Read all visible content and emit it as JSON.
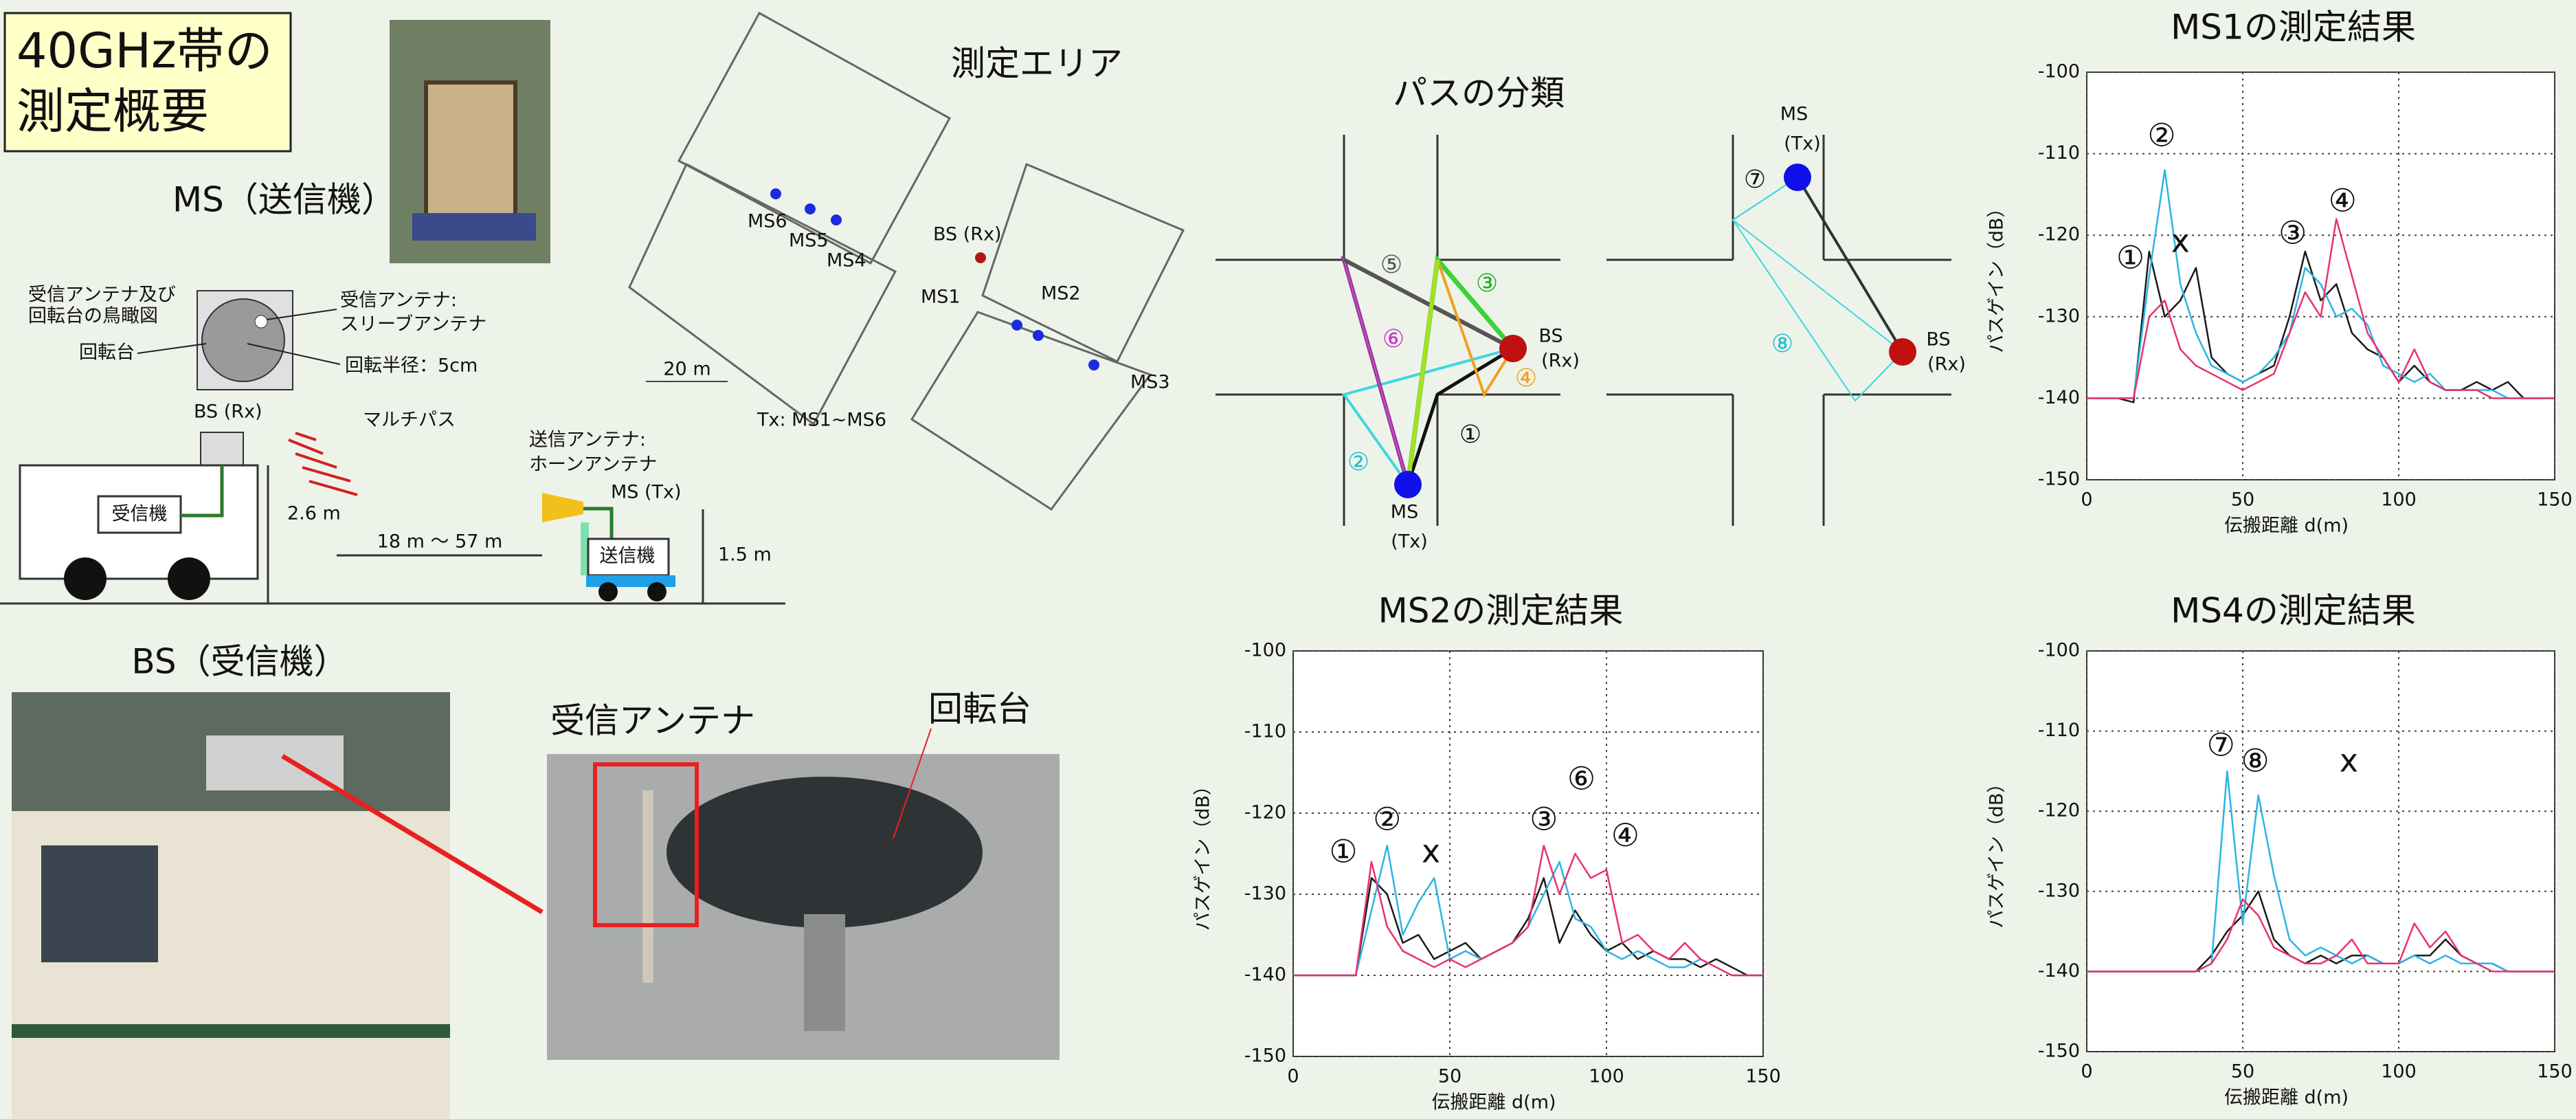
{
  "header": {
    "title_lines": [
      "40GHz帯の",
      "測定概要"
    ]
  },
  "setup": {
    "ms_label": "MS（送信機）",
    "birdseye_lines": [
      "受信アンテナ及び",
      "回転台の鳥瞰図"
    ],
    "rx_antenna_lines": [
      "受信アンテナ:",
      "スリーブアンテナ"
    ],
    "turntable": "回転台",
    "radius": "回転半径：5cm",
    "bs_rx": "BS (Rx)",
    "receiver": "受信機",
    "multipath": "マルチパス",
    "height_bs": "2.6 m",
    "distance": "18 m ～ 57 m",
    "tx_antenna_lines": [
      "送信アンテナ:",
      "ホーンアンテナ"
    ],
    "ms_tx": "MS (Tx)",
    "transmitter": "送信機",
    "height_ms": "1.5 m",
    "bs_label": "BS（受信機）",
    "rx_antenna_photo": "受信アンテナ",
    "turntable_photo": "回転台"
  },
  "map": {
    "title": "測定エリア",
    "points": [
      "MS1",
      "MS2",
      "MS3",
      "MS4",
      "MS5",
      "MS6"
    ],
    "bs": "BS (Rx)",
    "scale": "20 m",
    "tx_note": "Tx: MS1~MS6"
  },
  "paths": {
    "title": "パスの分類",
    "labels": [
      "①",
      "②",
      "③",
      "④",
      "⑤",
      "⑥",
      "⑦",
      "⑧"
    ],
    "bs": "BS",
    "rx": "(Rx)",
    "ms": "MS",
    "tx": "(Tx)"
  },
  "chart_data": [
    {
      "type": "line",
      "title": "MS1の測定結果",
      "x_label": "伝搬距離 d(m)",
      "y_label": "パスゲイン（dB）",
      "xlim": [
        0,
        150
      ],
      "ylim": [
        -150,
        -100
      ],
      "xticks": [
        0,
        50,
        100,
        150
      ],
      "yticks": [
        -150,
        -140,
        -130,
        -120,
        -110,
        -100
      ],
      "grid": true,
      "x": [
        0,
        5,
        10,
        15,
        20,
        25,
        30,
        35,
        40,
        45,
        50,
        55,
        60,
        65,
        70,
        75,
        80,
        85,
        90,
        95,
        100,
        105,
        110,
        115,
        120,
        125,
        130,
        135,
        140,
        145,
        150
      ],
      "series": [
        {
          "color": "#1a1a1a",
          "values": [
            -140,
            -140,
            -140,
            -140.5,
            -122,
            -130,
            -128,
            -124,
            -135,
            -137,
            -138,
            -137,
            -136,
            -130,
            -122,
            -128,
            -126,
            -132,
            -134,
            -135,
            -138,
            -136,
            -138,
            -139,
            -139,
            -138,
            -139,
            -138,
            -140,
            -140,
            -140
          ]
        },
        {
          "color": "#2bb5e6",
          "values": [
            -140,
            -140,
            -140,
            -140,
            -125,
            -112,
            -126,
            -132,
            -136,
            -137,
            -138,
            -137,
            -135,
            -132,
            -124,
            -126,
            -130,
            -129,
            -131,
            -136,
            -137,
            -138,
            -137,
            -139,
            -139,
            -139,
            -139,
            -140,
            -140,
            -140,
            -140
          ]
        },
        {
          "color": "#e8336d",
          "values": [
            -140,
            -140,
            -140,
            -140,
            -130,
            -128,
            -134,
            -136,
            -137,
            -138,
            -139,
            -138,
            -137,
            -132,
            -127,
            -130,
            -118,
            -125,
            -132,
            -135,
            -138,
            -134,
            -138,
            -139,
            -139,
            -139,
            -140,
            -140,
            -140,
            -140,
            -140
          ]
        }
      ],
      "annotations": [
        "①",
        "②",
        "x",
        "③",
        "④"
      ]
    },
    {
      "type": "line",
      "title": "MS2の測定結果",
      "x_label": "伝搬距離 d(m)",
      "y_label": "パスゲイン（dB）",
      "xlim": [
        0,
        150
      ],
      "ylim": [
        -150,
        -100
      ],
      "xticks": [
        0,
        50,
        100,
        150
      ],
      "yticks": [
        -150,
        -140,
        -130,
        -120,
        -110,
        -100
      ],
      "grid": true,
      "x": [
        0,
        5,
        10,
        15,
        20,
        25,
        30,
        35,
        40,
        45,
        50,
        55,
        60,
        65,
        70,
        75,
        80,
        85,
        90,
        95,
        100,
        105,
        110,
        115,
        120,
        125,
        130,
        135,
        140,
        145,
        150
      ],
      "series": [
        {
          "color": "#1a1a1a",
          "values": [
            -140,
            -140,
            -140,
            -140,
            -140,
            -128,
            -130,
            -136,
            -135,
            -138,
            -137,
            -136,
            -138,
            -137,
            -136,
            -133,
            -128,
            -136,
            -132,
            -135,
            -137,
            -136,
            -138,
            -137,
            -138,
            -138,
            -139,
            -138,
            -139,
            -140,
            -140
          ]
        },
        {
          "color": "#2bb5e6",
          "values": [
            -140,
            -140,
            -140,
            -140,
            -140,
            -132,
            -124,
            -135,
            -131,
            -128,
            -138,
            -137,
            -138,
            -137,
            -136,
            -134,
            -130,
            -126,
            -133,
            -134,
            -137,
            -138,
            -137,
            -138,
            -139,
            -139,
            -138,
            -139,
            -140,
            -140,
            -140
          ]
        },
        {
          "color": "#e8336d",
          "values": [
            -140,
            -140,
            -140,
            -140,
            -140,
            -126,
            -134,
            -137,
            -138,
            -139,
            -138,
            -139,
            -138,
            -137,
            -136,
            -134,
            -124,
            -130,
            -125,
            -128,
            -127,
            -136,
            -135,
            -137,
            -138,
            -136,
            -138,
            -139,
            -140,
            -140,
            -140
          ]
        }
      ],
      "annotations": [
        "①",
        "②",
        "x",
        "③",
        "⑥",
        "④"
      ]
    },
    {
      "type": "line",
      "title": "MS4の測定結果",
      "x_label": "伝搬距離 d(m)",
      "y_label": "パスゲイン（dB）",
      "xlim": [
        0,
        150
      ],
      "ylim": [
        -150,
        -100
      ],
      "xticks": [
        0,
        50,
        100,
        150
      ],
      "yticks": [
        -150,
        -140,
        -130,
        -120,
        -110,
        -100
      ],
      "grid": true,
      "x": [
        0,
        5,
        10,
        15,
        20,
        25,
        30,
        35,
        40,
        45,
        50,
        55,
        60,
        65,
        70,
        75,
        80,
        85,
        90,
        95,
        100,
        105,
        110,
        115,
        120,
        125,
        130,
        135,
        140,
        145,
        150
      ],
      "series": [
        {
          "color": "#1a1a1a",
          "values": [
            -140,
            -140,
            -140,
            -140,
            -140,
            -140,
            -140,
            -140,
            -138,
            -135,
            -133,
            -130,
            -136,
            -138,
            -139,
            -138,
            -139,
            -138,
            -138,
            -139,
            -139,
            -138,
            -138,
            -136,
            -138,
            -139,
            -139,
            -140,
            -140,
            -140,
            -140
          ]
        },
        {
          "color": "#2bb5e6",
          "values": [
            -140,
            -140,
            -140,
            -140,
            -140,
            -140,
            -140,
            -140,
            -139,
            -115,
            -134,
            -118,
            -128,
            -136,
            -138,
            -137,
            -138,
            -139,
            -138,
            -139,
            -139,
            -138,
            -139,
            -138,
            -139,
            -139,
            -139,
            -140,
            -140,
            -140,
            -140
          ]
        },
        {
          "color": "#e8336d",
          "values": [
            -140,
            -140,
            -140,
            -140,
            -140,
            -140,
            -140,
            -140,
            -139,
            -136,
            -131,
            -133,
            -137,
            -138,
            -139,
            -139,
            -138,
            -136,
            -139,
            -139,
            -139,
            -134,
            -137,
            -135,
            -138,
            -139,
            -140,
            -140,
            -140,
            -140,
            -140
          ]
        }
      ],
      "annotations": [
        "⑦",
        "⑧",
        "x"
      ]
    }
  ]
}
